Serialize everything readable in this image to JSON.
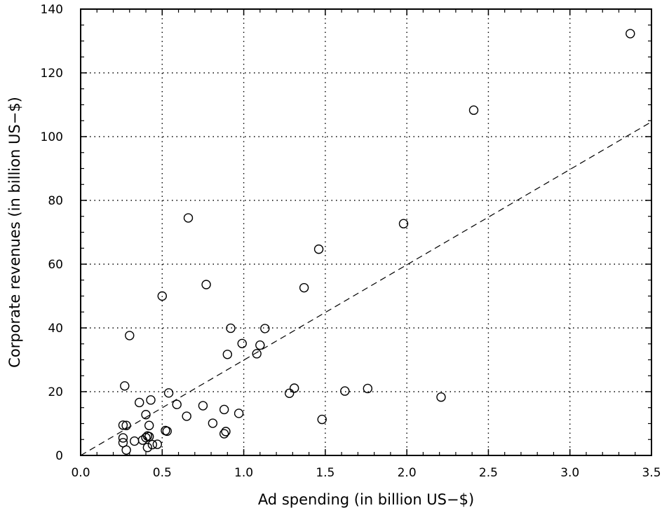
{
  "chart_data": {
    "type": "scatter",
    "title": "",
    "xlabel": "Ad spending (in billion US−$)",
    "ylabel": "Corporate revenues (in billion US−$)",
    "xlim": [
      0,
      3.5
    ],
    "ylim": [
      0,
      140
    ],
    "xticks": [
      0,
      0.5,
      1.0,
      1.5,
      2.0,
      2.5,
      3.0,
      3.5
    ],
    "xtick_labels": [
      "0.0",
      "0.5",
      "1.0",
      "1.5",
      "2.0",
      "2.5",
      "3.0",
      "3.5"
    ],
    "yticks": [
      0,
      20,
      40,
      60,
      80,
      100,
      120,
      140
    ],
    "ytick_labels": [
      "0",
      "20",
      "40",
      "60",
      "80",
      "100",
      "120",
      "140"
    ],
    "grid": true,
    "marker": "open-circle",
    "trendline": {
      "style": "dashed",
      "slope": 29.9,
      "intercept": 0
    },
    "series": [
      {
        "x": [
          3.37,
          2.41,
          1.98,
          1.46,
          1.37,
          2.21,
          1.76,
          1.62,
          1.48,
          1.31,
          1.28,
          1.13,
          1.1,
          1.08,
          0.99,
          0.97,
          0.92,
          0.9,
          0.89,
          0.88,
          0.88,
          0.81,
          0.77,
          0.75,
          0.66,
          0.65,
          0.59,
          0.54,
          0.53,
          0.52,
          0.5,
          0.47,
          0.44,
          0.43,
          0.42,
          0.42,
          0.41,
          0.41,
          0.4,
          0.4,
          0.38,
          0.36,
          0.33,
          0.3,
          0.28,
          0.28,
          0.27,
          0.26,
          0.26,
          0.26
        ],
        "y": [
          132.3,
          108.3,
          72.7,
          64.7,
          52.6,
          18.3,
          21.0,
          20.2,
          11.3,
          21.1,
          19.5,
          39.8,
          34.6,
          31.9,
          35.1,
          13.2,
          39.9,
          31.7,
          7.5,
          6.8,
          14.4,
          10.1,
          53.6,
          15.6,
          74.5,
          12.3,
          16.0,
          19.6,
          7.6,
          7.8,
          50.0,
          3.5,
          3.4,
          17.4,
          9.4,
          5.9,
          6.1,
          2.5,
          5.6,
          12.8,
          4.8,
          16.6,
          4.5,
          37.6,
          9.4,
          1.7,
          21.8,
          9.5,
          5.5,
          4.0
        ]
      }
    ]
  }
}
